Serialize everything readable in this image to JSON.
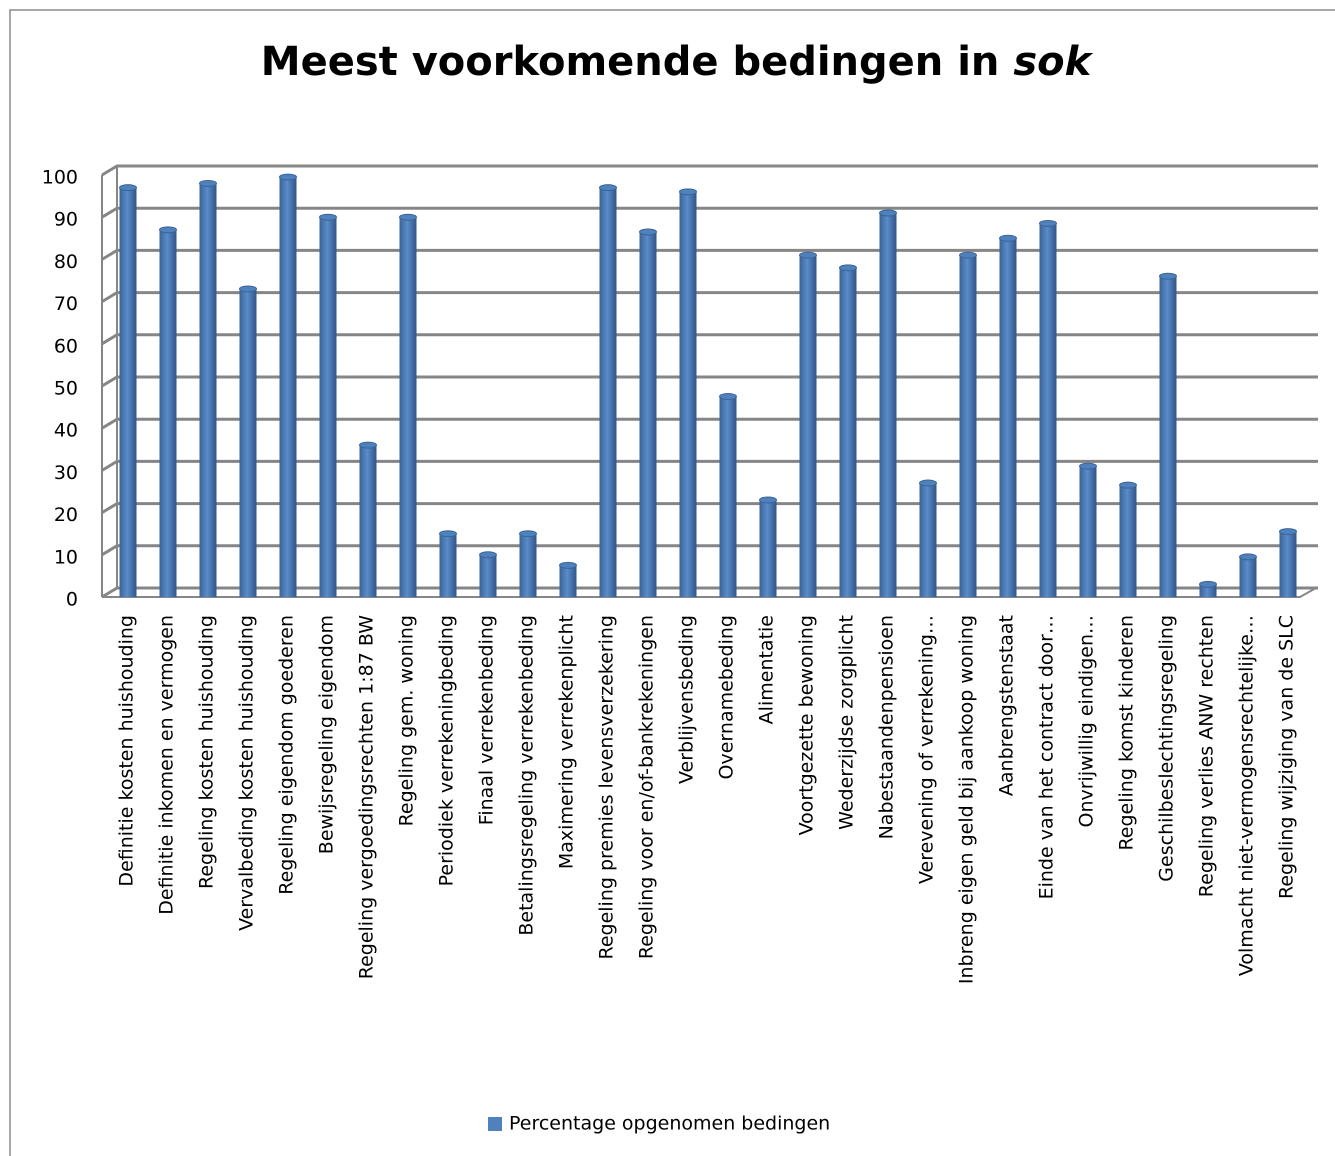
{
  "chart_data": {
    "type": "bar",
    "title": [
      "Meest voorkomende bedingen in",
      "sok"
    ],
    "categories": [
      "Definitie kosten huishouding",
      "Definitie inkomen en vermogen",
      "Regeling kosten huishouding",
      "Vervalbeding kosten huishouding",
      "Regeling eigendom goederen",
      "Bewijsregeling eigendom",
      "Regeling vergoedingsrechten 1:87 BW",
      "Regeling gem. woning",
      "Periodiek verrekeningbeding",
      "Finaal verrekenbeding",
      "Betalingsregeling verrekenbeding",
      "Maximering verrekenplicht",
      "Regeling premies levensverzekering",
      "Regeling voor en/of-bankrekeningen",
      "Verblijvensbeding",
      "Overnamebeding",
      "Alimentatie",
      "Voortgezette bewoning",
      "Wederzijdse zorgplicht",
      "Nabestaandenpensioen",
      "Verevening of verrekening…",
      "Inbreng eigen geld bij aankoop woning",
      "Aanbrengstenstaat",
      "Einde van het contract door…",
      "Onvrijwillig eindigen…",
      "Regeling komst kinderen",
      "Geschilbeslechtingsregeling",
      "Regeling verlies ANW rechten",
      "Volmacht niet-vermogensrechtelijke…",
      "Regeling wijziging van de SLC"
    ],
    "series": [
      {
        "name": "Percentage opgenomen bedingen",
        "color": "#4f81bd",
        "values": [
          97,
          87,
          98,
          73,
          99.5,
          90,
          36,
          90,
          15,
          10,
          15,
          7.5,
          97,
          86.5,
          96,
          47.5,
          23,
          81,
          78,
          91,
          27,
          81,
          85,
          88.5,
          31,
          26.5,
          76,
          3,
          9.5,
          15.5
        ]
      }
    ],
    "ylim": [
      0,
      100
    ],
    "yticks": [
      0,
      10,
      20,
      30,
      40,
      50,
      60,
      70,
      80,
      90,
      100
    ],
    "grid": true,
    "legend": "bottom"
  }
}
